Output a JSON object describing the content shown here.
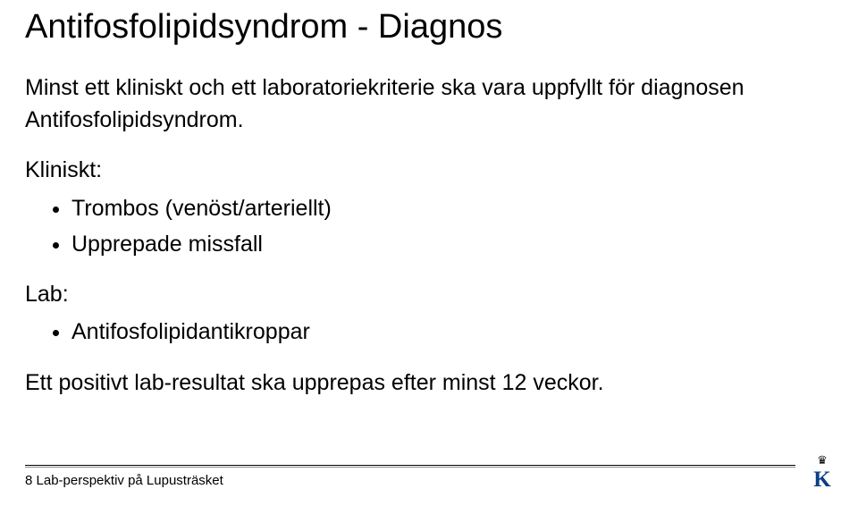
{
  "title": "Antifosfolipidsyndrom - Diagnos",
  "intro": "Minst ett kliniskt och ett laboratoriekriterie ska vara uppfyllt för diagnosen Antifosfolipidsyndrom.",
  "clinical_label": "Kliniskt:",
  "clinical_items": [
    "Trombos (venöst/arteriellt)",
    "Upprepade missfall"
  ],
  "lab_label": "Lab:",
  "lab_items": [
    "Antifosfolipidantikroppar"
  ],
  "closing": "Ett positivt lab-resultat ska upprepas efter minst 12 veckor.",
  "footer": {
    "page_number": "8",
    "subtitle": "Lab-perspektiv på Lupusträsket"
  },
  "logo": {
    "letter": "K",
    "letter_color": "#0a3e86",
    "letter_fontsize": 26,
    "letter_fontweight": "bold"
  },
  "styling": {
    "background_color": "#ffffff",
    "text_color": "#000000",
    "title_fontsize": 38,
    "body_fontsize": 25,
    "footer_fontsize": 15,
    "divider_color": "#000000"
  }
}
